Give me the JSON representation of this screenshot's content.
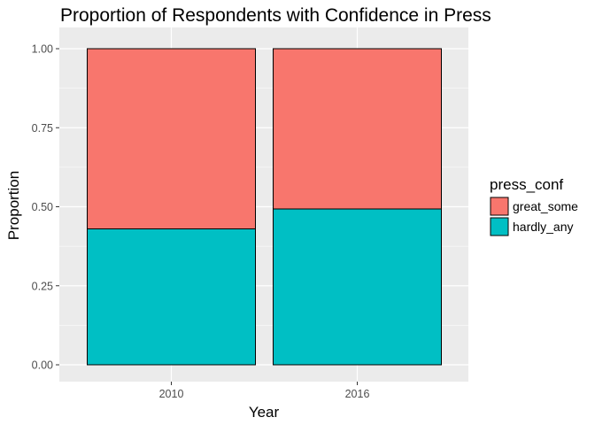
{
  "chart_data": {
    "type": "bar",
    "stacked": true,
    "position": "fill",
    "title": "Proportion of Respondents with Confidence in Press",
    "xlabel": "Year",
    "ylabel": "Proportion",
    "categories": [
      "2010",
      "2016"
    ],
    "series": [
      {
        "name": "hardly_any",
        "values": [
          0.43,
          0.493
        ],
        "color": "#00BFC4"
      },
      {
        "name": "great_some",
        "values": [
          0.57,
          0.507
        ],
        "color": "#F8766D"
      }
    ],
    "ylim": [
      0,
      1
    ],
    "yticks": [
      "0.00",
      "0.25",
      "0.50",
      "0.75",
      "1.00"
    ],
    "ytick_values": [
      0,
      0.25,
      0.5,
      0.75,
      1
    ],
    "legend": {
      "title": "press_conf",
      "entries": [
        "great_some",
        "hardly_any"
      ],
      "placement": "right"
    },
    "panel_background": "#EBEBEB",
    "grid": true
  }
}
